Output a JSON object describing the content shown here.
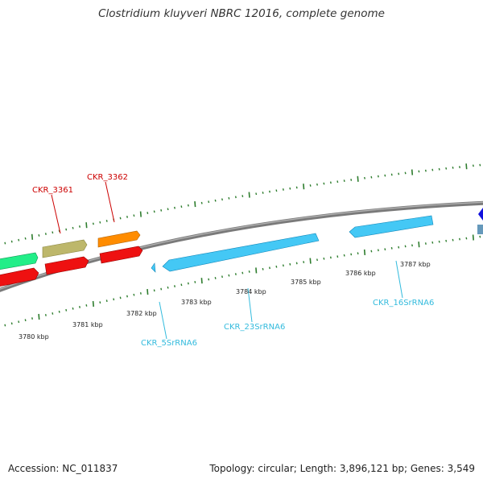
{
  "title": "Clostridium kluyveri NBRC 12016, complete genome",
  "footer": {
    "accession": "Accession: NC_011837",
    "stats": "Topology: circular; Length: 3,896,121 bp; Genes: 3,549"
  },
  "colors": {
    "backbone": "#888888",
    "tick": "#2e7d2e",
    "named_gene_label": "#cc0000",
    "rna_label": "#33bbdd",
    "rna_gene": "#44c8f5",
    "cds_red": "#ee1111",
    "cds_orange": "#ff8c00",
    "cds_khaki": "#bdb76b",
    "cds_green": "#22ee88",
    "cds_blue": "#1111dd"
  },
  "scale_labels": [
    "3780 kbp",
    "3781 kbp",
    "3782 kbp",
    "3783 kbp",
    "3784 kbp",
    "3785 kbp",
    "3786 kbp",
    "3787 kbp"
  ],
  "gene_labels": [
    {
      "id": "ckr3361",
      "text": "CKR_3361",
      "kind": "cds"
    },
    {
      "id": "ckr3362",
      "text": "CKR_3362",
      "kind": "cds"
    },
    {
      "id": "ckr5s",
      "text": "CKR_5SrRNA6",
      "kind": "rrna"
    },
    {
      "id": "ckr23s",
      "text": "CKR_23SrRNA6",
      "kind": "rrna"
    },
    {
      "id": "ckr16s",
      "text": "CKR_16SrRNA6",
      "kind": "rrna"
    }
  ]
}
